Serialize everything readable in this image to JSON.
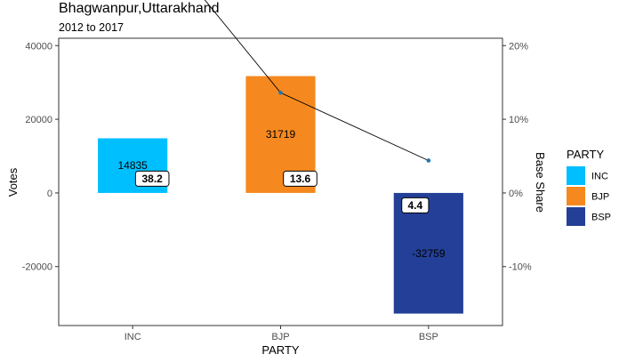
{
  "chart_data": {
    "type": "bar",
    "title": "Bhagwanpur,Uttarakhand",
    "subtitle": "2012 to 2017",
    "xlabel": "PARTY",
    "ylabel": "Votes",
    "y2label": "Base Share",
    "categories": [
      "INC",
      "BJP",
      "BSP"
    ],
    "values": [
      14835,
      31719,
      -32759
    ],
    "bar_labels": [
      "14835",
      "31719",
      "-32759"
    ],
    "colors": [
      "#00BFFF",
      "#F5891F",
      "#233F97"
    ],
    "ylim": [
      -36000,
      42000
    ],
    "yticks": [
      -20000,
      0,
      20000,
      40000
    ],
    "ytick_labels": [
      "-20000",
      "0",
      "20000",
      "40000"
    ],
    "y2lim": [
      -0.18,
      0.198
    ],
    "y2ticks": [
      -0.1,
      0,
      0.1,
      0.2
    ],
    "y2tick_labels": [
      "-10%",
      "0%",
      "10%",
      "20%"
    ],
    "line_series": {
      "values": [
        38.2,
        13.6,
        4.4
      ],
      "labels": [
        "38.2",
        "13.6",
        "4.4"
      ],
      "line_color": "#000000",
      "point_color": "#1F77B4",
      "secondary_axis_scale": 200000
    },
    "legend": {
      "title": "PARTY",
      "position": "right",
      "entries": [
        "INC",
        "BJP",
        "BSP"
      ]
    },
    "grid": false
  }
}
